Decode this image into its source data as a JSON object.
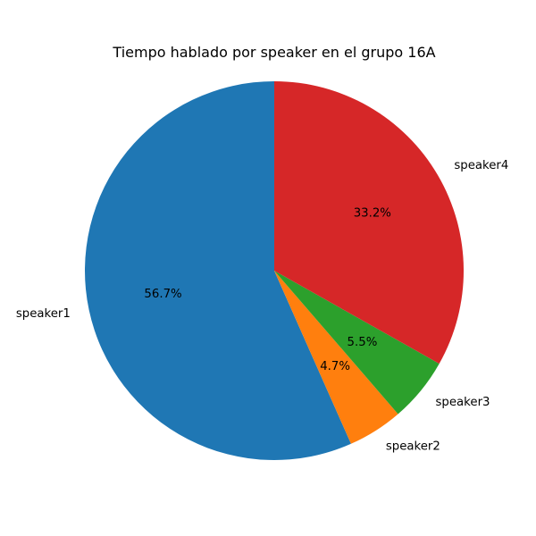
{
  "chart_data": {
    "type": "pie",
    "title": "Tiempo hablado por speaker en el grupo 16A",
    "labels": [
      "speaker1",
      "speaker2",
      "speaker3",
      "speaker4"
    ],
    "values": [
      56.7,
      4.7,
      5.5,
      33.2
    ],
    "percent_labels": [
      "56.7%",
      "4.7%",
      "5.5%",
      "33.2%"
    ],
    "colors": [
      "#1f77b4",
      "#ff7f0e",
      "#2ca02c",
      "#d62728"
    ],
    "start_angle_deg": 90,
    "direction": "counterclockwise"
  }
}
